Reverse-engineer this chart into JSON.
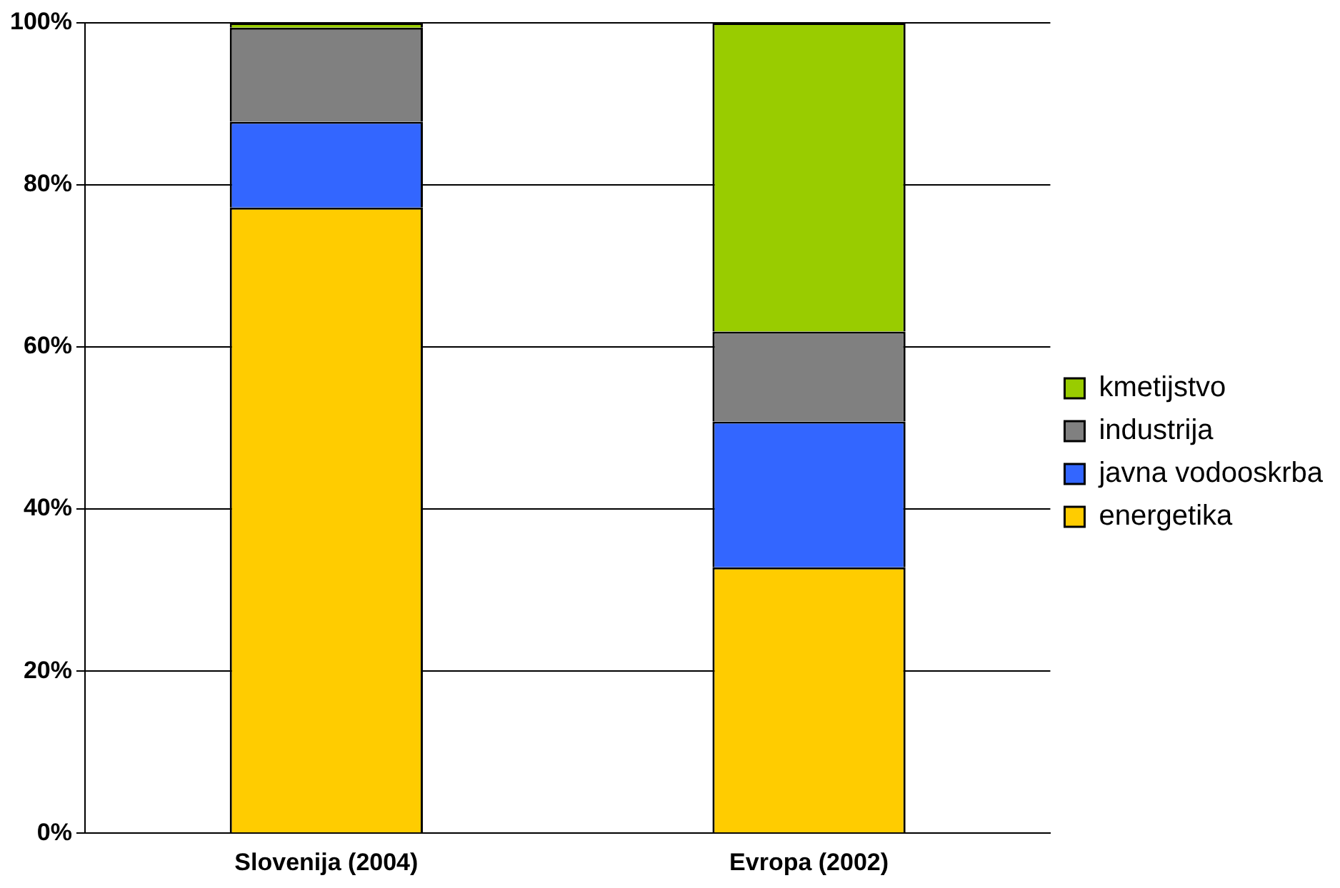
{
  "chart_data": {
    "type": "bar",
    "stacked": true,
    "categories": [
      "Slovenija (2004)",
      "Evropa (2002)"
    ],
    "series": [
      {
        "name": "energetika",
        "color": "#ffcc00",
        "values": [
          77.2,
          32.8
        ]
      },
      {
        "name": "javna vodooskrba",
        "color": "#3366ff",
        "values": [
          10.6,
          18.0
        ]
      },
      {
        "name": "industrija",
        "color": "#808080",
        "values": [
          11.6,
          11.1
        ]
      },
      {
        "name": "kmetijstvo",
        "color": "#99cc00",
        "values": [
          0.6,
          38.1
        ]
      }
    ],
    "ylim": [
      0,
      100
    ],
    "yticks": [
      {
        "value": 0,
        "label": "0%"
      },
      {
        "value": 20,
        "label": "20%"
      },
      {
        "value": 40,
        "label": "40%"
      },
      {
        "value": 60,
        "label": "60%"
      },
      {
        "value": 80,
        "label": "80%"
      },
      {
        "value": 100,
        "label": "100%"
      }
    ],
    "grid": "y",
    "legend": "right"
  }
}
